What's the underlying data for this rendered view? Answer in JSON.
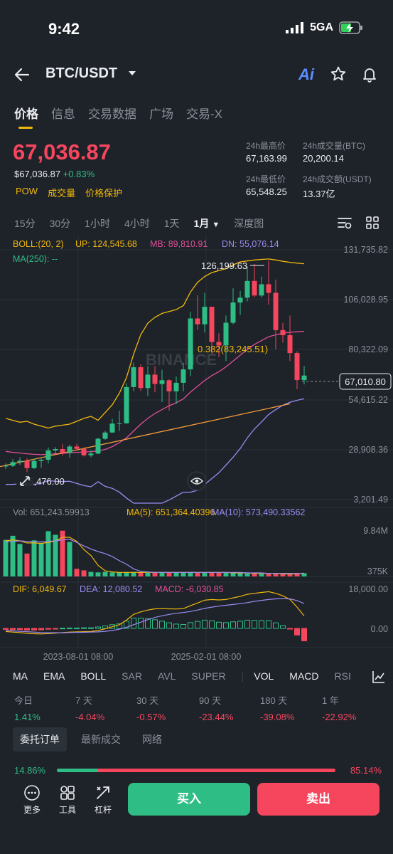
{
  "status": {
    "time": "9:42",
    "network": "5GA"
  },
  "header": {
    "pair": "BTC/USDT",
    "ai_label": "Ai"
  },
  "tabs": [
    "价格",
    "信息",
    "交易数据",
    "广场",
    "交易-X"
  ],
  "price": {
    "last": "67,036.87",
    "usd": "$67,036.87",
    "change": "+0.83%",
    "tags": [
      "POW",
      "成交量",
      "价格保护"
    ]
  },
  "stats": {
    "high_label": "24h最高价",
    "high_value": "67,163.99",
    "vol_btc_label": "24h成交量(BTC)",
    "vol_btc_value": "20,200.14",
    "low_label": "24h最低价",
    "low_value": "65,548.25",
    "vol_usdt_label": "24h成交额(USDT)",
    "vol_usdt_value": "13.37亿"
  },
  "intervals": [
    "15分",
    "30分",
    "1小时",
    "4小时",
    "1天",
    "1月",
    "深度图"
  ],
  "active_interval": "1月",
  "indicators": {
    "boll": "BOLL:(20, 2)",
    "up": "UP: 124,545.68",
    "mb": "MB: 89,810.91",
    "dn": "DN: 55,076.14",
    "ma250": "MA(250): --",
    "vol": "Vol: 651,243.59913",
    "ma5": "MA(5): 651,364.40396",
    "ma10": "MA(10): 573,490.33562",
    "dif": "DIF: 6,049.67",
    "dea": "DEA: 12,080.52",
    "macd": "MACD: -6,030.85"
  },
  "chart_labels": {
    "y_ticks": [
      "131,735.82",
      "106,028.95",
      "80,322.09",
      "54,615.22",
      "28,908.36",
      "3,201.49"
    ],
    "current_price": "67,010.80",
    "high_marker": "126,199.63",
    "low_marker": "15,476.00",
    "fib_label": "0.382(83,245.51)",
    "vol_ticks": [
      "9.84M",
      "375K"
    ],
    "macd_ticks": [
      "18,000.00",
      "0.00"
    ],
    "x_ticks": [
      "2023-08-01 08:00",
      "2025-02-01 08:00"
    ],
    "watermark": "BINANCE"
  },
  "chart_data": {
    "type": "candlestick",
    "y_range": [
      3201.49,
      131735.82
    ],
    "candles": [
      {
        "o": 20500,
        "h": 21800,
        "l": 19000,
        "c": 20600
      },
      {
        "o": 20600,
        "h": 24000,
        "l": 20000,
        "c": 22500
      },
      {
        "o": 22500,
        "h": 25000,
        "l": 21000,
        "c": 23200
      },
      {
        "o": 23200,
        "h": 24500,
        "l": 15476,
        "c": 19400
      },
      {
        "o": 19400,
        "h": 24200,
        "l": 19000,
        "c": 23100
      },
      {
        "o": 23100,
        "h": 24400,
        "l": 19600,
        "c": 23700
      },
      {
        "o": 23700,
        "h": 30000,
        "l": 21800,
        "c": 28500
      },
      {
        "o": 28500,
        "h": 30200,
        "l": 26500,
        "c": 29200
      },
      {
        "o": 29200,
        "h": 31800,
        "l": 25800,
        "c": 27200
      },
      {
        "o": 27200,
        "h": 31500,
        "l": 24800,
        "c": 30500
      },
      {
        "o": 30500,
        "h": 31800,
        "l": 28500,
        "c": 29300
      },
      {
        "o": 29300,
        "h": 30000,
        "l": 25400,
        "c": 26000
      },
      {
        "o": 26000,
        "h": 28600,
        "l": 25000,
        "c": 26900
      },
      {
        "o": 26900,
        "h": 35000,
        "l": 26600,
        "c": 34500
      },
      {
        "o": 34500,
        "h": 38500,
        "l": 34000,
        "c": 37700
      },
      {
        "o": 37700,
        "h": 44700,
        "l": 37600,
        "c": 42300
      },
      {
        "o": 42300,
        "h": 48900,
        "l": 38500,
        "c": 42500
      },
      {
        "o": 42500,
        "h": 63000,
        "l": 42000,
        "c": 61100
      },
      {
        "o": 61100,
        "h": 73700,
        "l": 59000,
        "c": 71300
      },
      {
        "o": 71300,
        "h": 72800,
        "l": 59100,
        "c": 60600
      },
      {
        "o": 60600,
        "h": 71900,
        "l": 56500,
        "c": 67500
      },
      {
        "o": 67500,
        "h": 71900,
        "l": 58400,
        "c": 62700
      },
      {
        "o": 62700,
        "h": 70000,
        "l": 53400,
        "c": 64600
      },
      {
        "o": 64600,
        "h": 65100,
        "l": 49000,
        "c": 58900
      },
      {
        "o": 58900,
        "h": 66500,
        "l": 52500,
        "c": 63300
      },
      {
        "o": 63300,
        "h": 73600,
        "l": 58900,
        "c": 70200
      },
      {
        "o": 70200,
        "h": 99800,
        "l": 66800,
        "c": 96400
      },
      {
        "o": 96400,
        "h": 108300,
        "l": 90500,
        "c": 93400
      },
      {
        "o": 93400,
        "h": 109600,
        "l": 89200,
        "c": 102400
      },
      {
        "o": 102400,
        "h": 102500,
        "l": 78200,
        "c": 84300
      },
      {
        "o": 84300,
        "h": 88800,
        "l": 76600,
        "c": 82500
      },
      {
        "o": 82500,
        "h": 97900,
        "l": 74500,
        "c": 94200
      },
      {
        "o": 94200,
        "h": 111900,
        "l": 93400,
        "c": 104600
      },
      {
        "o": 104600,
        "h": 110600,
        "l": 98200,
        "c": 107100
      },
      {
        "o": 107100,
        "h": 123200,
        "l": 105200,
        "c": 115700
      },
      {
        "o": 115700,
        "h": 124400,
        "l": 107300,
        "c": 108200
      },
      {
        "o": 108200,
        "h": 117900,
        "l": 107200,
        "c": 114000
      },
      {
        "o": 114000,
        "h": 126199.63,
        "l": 103500,
        "c": 109600
      },
      {
        "o": 109600,
        "h": 116400,
        "l": 80500,
        "c": 90400
      },
      {
        "o": 90400,
        "h": 94100,
        "l": 84000,
        "c": 87800
      },
      {
        "o": 87800,
        "h": 97900,
        "l": 74500,
        "c": 78600
      },
      {
        "o": 78600,
        "h": 79500,
        "l": 60000,
        "c": 64700
      },
      {
        "o": 64700,
        "h": 72000,
        "l": 62500,
        "c": 67010.8
      }
    ],
    "boll_up": [
      45000,
      44000,
      43000,
      43500,
      42000,
      41000,
      40000,
      41000,
      41500,
      42000,
      43500,
      45000,
      46000,
      44000,
      48000,
      52000,
      58000,
      66000,
      78000,
      88000,
      94000,
      97000,
      99000,
      100000,
      101000,
      103000,
      110000,
      115000,
      118000,
      120000,
      121000,
      122000,
      124000,
      125500,
      126000,
      126500,
      126800,
      127000,
      126500,
      125800,
      125300,
      124900,
      124545.68
    ],
    "boll_mid": [
      28000,
      27500,
      27200,
      26800,
      26500,
      26300,
      26500,
      26800,
      27000,
      27300,
      27500,
      27700,
      27900,
      28200,
      29000,
      30500,
      32500,
      35000,
      38500,
      42000,
      45000,
      47500,
      49500,
      51500,
      53000,
      55000,
      58500,
      61500,
      64500,
      67000,
      69000,
      71500,
      74500,
      77500,
      80500,
      83000,
      85000,
      87000,
      88000,
      88800,
      89300,
      89600,
      89810.91
    ],
    "boll_dn": [
      11000,
      11000,
      11400,
      10100,
      11000,
      11600,
      13000,
      12600,
      12500,
      12600,
      11500,
      10400,
      9800,
      12400,
      10000,
      9000,
      7000,
      4000,
      -1000,
      -4000,
      -4000,
      -2000,
      0,
      3000,
      5000,
      7000,
      7000,
      8000,
      11000,
      14000,
      17000,
      21000,
      25000,
      29500,
      35000,
      39500,
      43200,
      47000,
      49500,
      51800,
      53300,
      54300,
      55076.14
    ],
    "ma250_trend": [
      [
        17,
        30500
      ],
      [
        40,
        52500
      ]
    ],
    "volume": [
      7.2,
      8.0,
      6.4,
      4.5,
      7.1,
      6.6,
      8.9,
      8.2,
      9.0,
      6.8,
      1.5,
      1.2,
      0.9,
      0.8,
      0.9,
      0.8,
      0.8,
      0.9,
      0.9,
      0.8,
      0.7,
      0.8,
      0.8,
      0.7,
      0.8,
      0.8,
      0.9,
      0.7,
      0.8,
      0.8,
      0.7,
      0.8,
      0.7,
      0.7,
      0.6,
      0.6,
      0.5,
      0.5,
      0.6,
      0.5,
      0.5,
      0.6,
      0.651
    ],
    "vol_ma5": [
      7.0,
      7.2,
      7.0,
      6.6,
      6.6,
      6.5,
      6.7,
      7.0,
      7.7,
      7.7,
      6.9,
      5.3,
      4.1,
      2.2,
      1.1,
      0.9,
      0.8,
      0.8,
      0.8,
      0.8,
      0.8,
      0.8,
      0.8,
      0.8,
      0.8,
      0.8,
      0.8,
      0.8,
      0.8,
      0.8,
      0.8,
      0.8,
      0.7,
      0.7,
      0.7,
      0.6,
      0.6,
      0.6,
      0.6,
      0.5,
      0.5,
      0.55,
      0.651
    ],
    "vol_ma10": [
      6.8,
      6.9,
      7.0,
      6.9,
      6.8,
      6.8,
      6.9,
      7.0,
      7.2,
      7.3,
      6.7,
      6.0,
      5.4,
      4.9,
      4.5,
      3.9,
      3.1,
      2.4,
      1.5,
      1.0,
      0.9,
      0.8,
      0.8,
      0.8,
      0.8,
      0.8,
      0.8,
      0.8,
      0.8,
      0.8,
      0.8,
      0.8,
      0.8,
      0.8,
      0.7,
      0.7,
      0.7,
      0.6,
      0.6,
      0.6,
      0.6,
      0.6,
      0.573
    ],
    "dif": [
      -1500,
      -1800,
      -2000,
      -2400,
      -2600,
      -2700,
      -2500,
      -2300,
      -2000,
      -1800,
      -1700,
      -1600,
      -1500,
      -1000,
      -200,
      800,
      1800,
      4000,
      6800,
      8000,
      8900,
      9500,
      9600,
      9500,
      9400,
      9600,
      11000,
      12300,
      13700,
      14000,
      13800,
      14000,
      14800,
      15500,
      16500,
      17000,
      17400,
      17800,
      17000,
      15800,
      14000,
      10300,
      6049.67
    ],
    "dea": [
      -1000,
      -1200,
      -1400,
      -1600,
      -1800,
      -2000,
      -2100,
      -2100,
      -2100,
      -2000,
      -1900,
      -1900,
      -1800,
      -1700,
      -1400,
      -1000,
      -400,
      500,
      1800,
      3000,
      4200,
      5300,
      6100,
      6800,
      7300,
      7700,
      8200,
      8900,
      9700,
      10300,
      10800,
      11200,
      11600,
      12000,
      12500,
      13100,
      13600,
      14000,
      14300,
      14400,
      14300,
      13500,
      12080.52
    ],
    "macd_hist": [
      -500,
      -600,
      -600,
      -800,
      -800,
      -700,
      -400,
      -200,
      100,
      200,
      200,
      300,
      300,
      700,
      1200,
      1800,
      2200,
      3500,
      5000,
      5000,
      4700,
      4200,
      3500,
      2700,
      2100,
      1900,
      2800,
      3400,
      4000,
      3700,
      3000,
      2800,
      3200,
      3500,
      4000,
      3900,
      3800,
      3800,
      2700,
      1400,
      -300,
      -3200,
      -6030.85
    ]
  },
  "indicator_bar": [
    "MA",
    "EMA",
    "BOLL",
    "SAR",
    "AVL",
    "SUPER",
    "VOL",
    "MACD",
    "RSI"
  ],
  "performance": [
    {
      "label": "今日",
      "value": "1.41%",
      "up": true
    },
    {
      "label": "7 天",
      "value": "-4.04%",
      "up": false
    },
    {
      "label": "30 天",
      "value": "-0.57%",
      "up": false
    },
    {
      "label": "90 天",
      "value": "-23.44%",
      "up": false
    },
    {
      "label": "180 天",
      "value": "-39.08%",
      "up": false
    },
    {
      "label": "1 年",
      "value": "-22.92%",
      "up": false
    }
  ],
  "order_tabs": [
    "委托订单",
    "最新成交",
    "网络"
  ],
  "ratio": {
    "buy": "14.86%",
    "sell": "85.14%",
    "buy_fraction": 0.1486
  },
  "bottom": {
    "more": "更多",
    "tools": "工具",
    "leverage": "杠杆",
    "buy": "买入",
    "sell": "卖出"
  },
  "colors": {
    "up": "#2ebd85",
    "down": "#f6465d",
    "accent": "#f0b90b",
    "boll_up": "#f0b90b",
    "boll_mid": "#e0509a",
    "boll_dn": "#9b8cf2"
  }
}
